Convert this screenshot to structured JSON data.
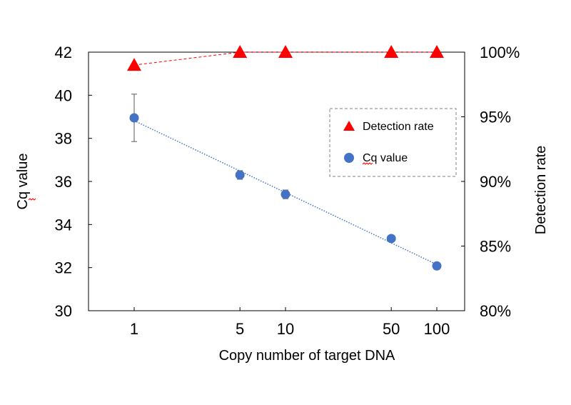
{
  "chart_data": {
    "type": "scatter",
    "xlabel": "Copy number of target DNA",
    "ylabel_left": "Cq value",
    "ylabel_right": "Detection rate",
    "x_scale": "log",
    "x_ticks": [
      1,
      5,
      10,
      50,
      100
    ],
    "x_tick_labels": [
      "1",
      "5",
      "10",
      "50",
      "100"
    ],
    "xlim": [
      0.5,
      150
    ],
    "ylim_left": [
      30,
      42
    ],
    "y_left_ticks": [
      30,
      32,
      34,
      36,
      38,
      40,
      42
    ],
    "y_left_tick_labels": [
      "30",
      "32",
      "34",
      "36",
      "38",
      "40",
      "42"
    ],
    "ylim_right": [
      0.8,
      1.0
    ],
    "y_right_ticks": [
      0.8,
      0.85,
      0.9,
      0.95,
      1.0
    ],
    "y_right_tick_labels": [
      "80%",
      "85%",
      "90%",
      "95%",
      "100%"
    ],
    "grid": false,
    "legend_position": "upper-right",
    "series": [
      {
        "name": "Detection rate",
        "axis": "right",
        "marker": "triangle",
        "color": "#ff0000",
        "trendline": "dashed",
        "x": [
          1,
          5,
          10,
          50,
          100
        ],
        "y": [
          0.99,
          1.0,
          1.0,
          1.0,
          1.0
        ]
      },
      {
        "name": "Cq value",
        "axis": "left",
        "marker": "circle",
        "color": "#4472c4",
        "trendline": "dotted",
        "x": [
          1,
          5,
          10,
          50,
          100
        ],
        "y": [
          38.95,
          36.3,
          35.4,
          33.35,
          32.08
        ],
        "error": [
          1.1,
          0.2,
          0.2,
          0.0,
          0.0
        ]
      }
    ]
  }
}
